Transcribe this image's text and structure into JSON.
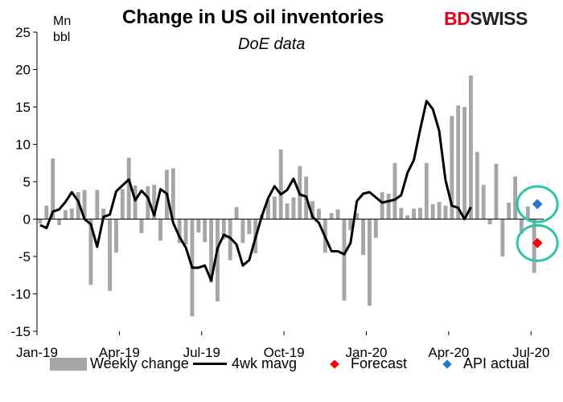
{
  "title": "Change in US oil inventories",
  "subtitle": "DoE data",
  "unit_line1": "Mn",
  "unit_line2": "bbl",
  "logo": {
    "part1": "BD",
    "part2": "SWISS"
  },
  "chart_data": {
    "type": "bar",
    "ylim": [
      -15,
      25
    ],
    "yticks": [
      25,
      20,
      15,
      10,
      5,
      0,
      -5,
      -10,
      -15
    ],
    "xticks": [
      {
        "label": "Jan-19",
        "week": 0
      },
      {
        "label": "Apr-19",
        "week": 13
      },
      {
        "label": "Jul-19",
        "week": 26
      },
      {
        "label": "Oct-19",
        "week": 39
      },
      {
        "label": "Jan-20",
        "week": 52
      },
      {
        "label": "Apr-20",
        "week": 65
      },
      {
        "label": "Jul-20",
        "week": 78
      }
    ],
    "series": [
      {
        "name": "Weekly change",
        "type": "bar",
        "color": "#a6a6a6",
        "values": [
          -0.6,
          1.8,
          8.1,
          -0.8,
          1.2,
          1.4,
          3.6,
          3.9,
          -8.8,
          3.9,
          1.4,
          -9.6,
          -4.5,
          4.0,
          8.2,
          4.5,
          -1.9,
          4.4,
          4.6,
          -2.9,
          6.6,
          6.8,
          -3.2,
          -3.4,
          -13.0,
          -1.8,
          -3.1,
          -8.5,
          -11.0,
          -2.7,
          -5.5,
          1.6,
          -3.2,
          -2.0,
          -4.6,
          0.6,
          2.6,
          3.0,
          9.3,
          2.1,
          2.9,
          7.1,
          5.7,
          2.4,
          1.4,
          -4.5,
          0.8,
          1.3,
          -10.9,
          -1.5,
          0.8,
          -4.8,
          -11.6,
          -2.5,
          3.6,
          3.4,
          7.5,
          1.5,
          0.5,
          1.4,
          1.5,
          7.5,
          2.0,
          2.3,
          1.8,
          13.8,
          15.2,
          15.0,
          19.2,
          9.0,
          4.6,
          -0.7,
          7.4,
          -5.0,
          2.2,
          5.7,
          -2.0,
          1.7,
          -7.2
        ],
        "label": "Weekly change"
      },
      {
        "name": "4wk mavg",
        "type": "line",
        "color": "#000000",
        "values": [
          -0.8,
          -1.2,
          1.0,
          1.3,
          2.3,
          3.6,
          2.4,
          0.0,
          -0.7,
          -3.7,
          0.3,
          0.6,
          3.7,
          4.5,
          5.3,
          2.5,
          3.8,
          2.9,
          0.5,
          4.0,
          3.4,
          -0.5,
          -2.4,
          -3.8,
          -6.5,
          -6.5,
          -6.2,
          -8.2,
          -3.9,
          -2.1,
          -2.5,
          -3.4,
          -6.2,
          -5.5,
          -2.5,
          0.4,
          2.8,
          4.4,
          3.3,
          3.9,
          5.4,
          3.3,
          3.0,
          0.3,
          -0.5,
          -2.4,
          -4.3,
          -4.3,
          -4.7,
          -3.2,
          2.4,
          3.4,
          3.6,
          2.9,
          2.2,
          2.4,
          2.6,
          3.2,
          6.2,
          7.9,
          12.0,
          15.8,
          14.7,
          11.8,
          5.2,
          1.8,
          1.5,
          0.0,
          1.6
        ],
        "start_week": 0,
        "label": "4wk mavg"
      },
      {
        "name": "Forecast",
        "type": "marker",
        "color": "#ff0000",
        "week": 78.5,
        "value": -3.2,
        "label": "Forecast"
      },
      {
        "name": "API actual",
        "type": "marker",
        "color": "#1f78d1",
        "week": 78.5,
        "value": 2.0,
        "label": "API actual"
      }
    ],
    "legend_position": "bottom",
    "grid": false
  }
}
